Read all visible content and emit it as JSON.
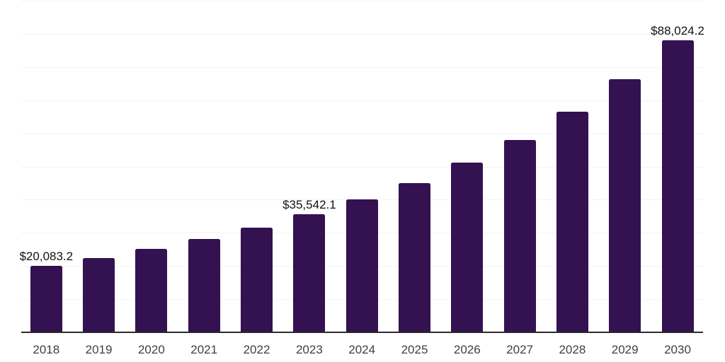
{
  "chart_data": {
    "type": "bar",
    "title": "",
    "xlabel": "",
    "ylabel": "",
    "categories": [
      "2018",
      "2019",
      "2020",
      "2021",
      "2022",
      "2023",
      "2024",
      "2025",
      "2026",
      "2027",
      "2028",
      "2029",
      "2030"
    ],
    "values": [
      20083.2,
      22300,
      25200,
      28100,
      31600,
      35542.1,
      40100,
      45100,
      51200,
      58100,
      66600,
      76400,
      88024.2
    ],
    "value_labels": [
      "$20,083.2",
      "",
      "",
      "",
      "",
      "$35,542.1",
      "",
      "",
      "",
      "",
      "",
      "",
      "$88,024.2"
    ],
    "ylim": [
      0,
      100000
    ],
    "gridline_step": 10000,
    "grid": "horizontal",
    "legend": "none"
  },
  "style": {
    "background": "#ffffff",
    "bar_color": "#341150",
    "gridline_color": "#f3f3f3",
    "axis_line_color": "#2b2b2b",
    "x_tick_color": "#3f3f3f",
    "value_label_color": "#111111"
  }
}
